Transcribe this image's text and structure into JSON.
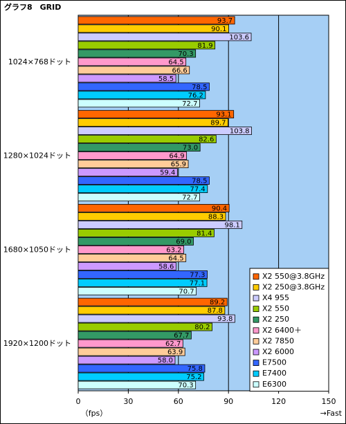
{
  "chart_data": {
    "type": "barh",
    "title": "グラフ8　GRID",
    "categories": [
      "1024×768ドット",
      "1280×1024ドット",
      "1680×1050ドット",
      "1920×1200ドット"
    ],
    "series": [
      {
        "name": "X2 550@3.8GHz",
        "color": "#ff6600",
        "values": [
          93.7,
          93.1,
          90.4,
          89.2
        ],
        "value_labels": [
          "93.7",
          "93.1",
          "90.4",
          "89.2"
        ]
      },
      {
        "name": "X2 250@3.8GHz",
        "color": "#ffcc00",
        "values": [
          90.1,
          89.7,
          88.3,
          87.8
        ],
        "value_labels": [
          "90.1",
          "89.7",
          "88.3",
          "87.8"
        ]
      },
      {
        "name": "X4 955",
        "color": "#ccccff",
        "values": [
          103.6,
          103.8,
          98.1,
          93.8
        ],
        "value_labels": [
          "103.6",
          "103.8",
          "98.1",
          "93.8"
        ]
      },
      {
        "name": "X2 550",
        "color": "#99cc00",
        "values": [
          81.9,
          82.6,
          81.4,
          80.2
        ],
        "value_labels": [
          "81.9",
          "82.6",
          "81.4",
          "80.2"
        ]
      },
      {
        "name": "X2 250",
        "color": "#339966",
        "values": [
          70.3,
          73,
          69,
          67.7
        ],
        "value_labels": [
          "70.3",
          "73.0",
          "69.0",
          "67.7"
        ]
      },
      {
        "name": "X2 6400＋",
        "color": "#ff99cc",
        "values": [
          64.5,
          64.9,
          63.2,
          62.7
        ],
        "value_labels": [
          "64.5",
          "64.9",
          "63.2",
          "62.7"
        ]
      },
      {
        "name": "X2 7850",
        "color": "#ffcc99",
        "values": [
          66.6,
          65.9,
          64.5,
          63.9
        ],
        "value_labels": [
          "66.6",
          "65.9",
          "64.5",
          "63.9"
        ]
      },
      {
        "name": "X2 6000",
        "color": "#cc99ff",
        "values": [
          58.5,
          59.4,
          58.6,
          58
        ],
        "value_labels": [
          "58.5",
          "59.4",
          "58.6",
          "58.0"
        ]
      },
      {
        "name": "E7500",
        "color": "#3366ff",
        "values": [
          78.5,
          78.5,
          77.3,
          75.8
        ],
        "value_labels": [
          "78.5",
          "78.5",
          "77.3",
          "75.8"
        ]
      },
      {
        "name": "E7400",
        "color": "#00ccff",
        "values": [
          76.2,
          77.4,
          77.1,
          75.2
        ],
        "value_labels": [
          "76.2",
          "77.4",
          "77.1",
          "75.2"
        ]
      },
      {
        "name": "E6300",
        "color": "#ccffff",
        "values": [
          72.7,
          72.7,
          70.7,
          70.3
        ],
        "value_labels": [
          "72.7",
          "72.7",
          "70.7",
          "70.3"
        ]
      }
    ],
    "xlim": [
      0,
      150
    ],
    "xticks": [
      0,
      30,
      60,
      90,
      120,
      150
    ],
    "grid": true,
    "xlabel": "（fps）",
    "annotation": "→Fast",
    "legend": "lower right",
    "background": "#a6cff5"
  }
}
